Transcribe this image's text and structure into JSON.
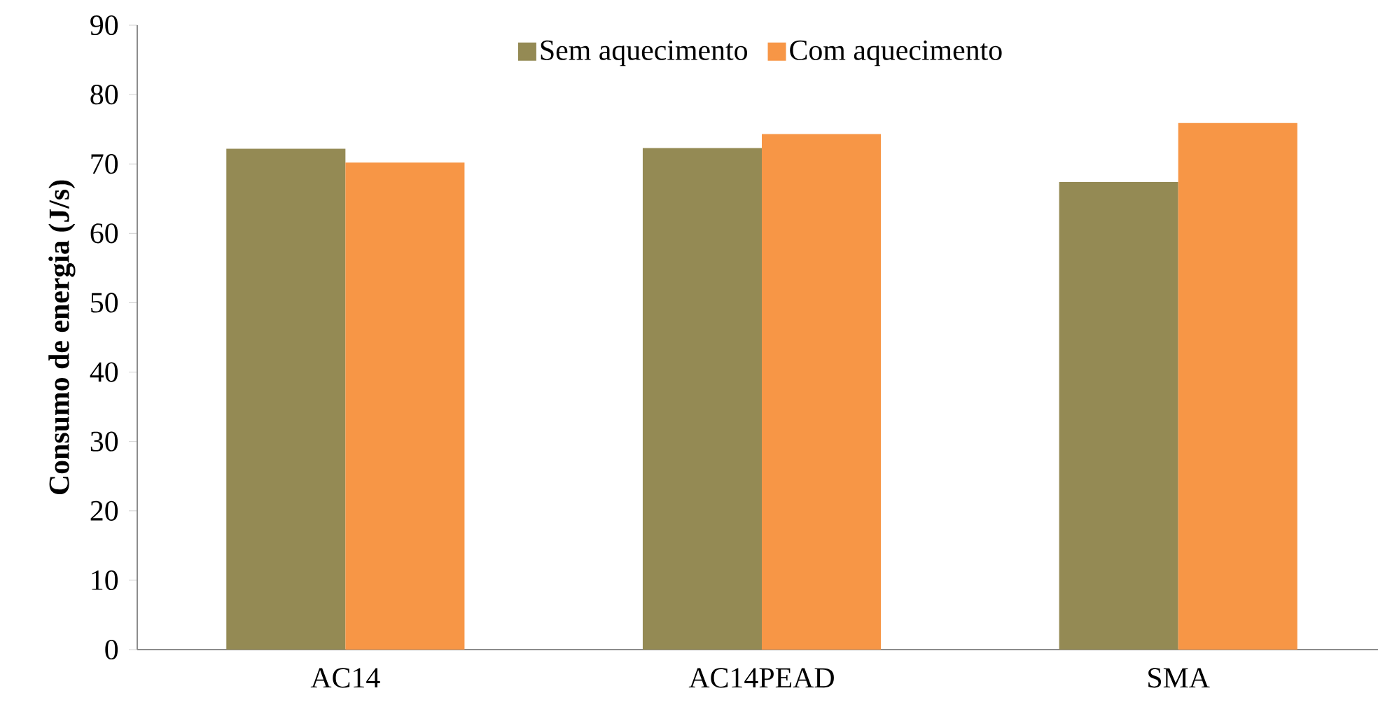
{
  "chart_data": {
    "type": "bar",
    "ylabel": "Consumo de energia (J/s)",
    "categories": [
      "AC14",
      "AC14PEAD",
      "SMA"
    ],
    "series": [
      {
        "name": "Sem aquecimento",
        "color": "#948a54",
        "values": [
          72.2,
          72.3,
          67.4
        ]
      },
      {
        "name": "Com aquecimento",
        "color": "#f79646",
        "values": [
          70.2,
          74.3,
          75.9
        ]
      }
    ],
    "ylim": [
      0,
      90
    ],
    "yticks": [
      0,
      10,
      20,
      30,
      40,
      50,
      60,
      70,
      80,
      90
    ],
    "grid": false,
    "legend": "top"
  }
}
